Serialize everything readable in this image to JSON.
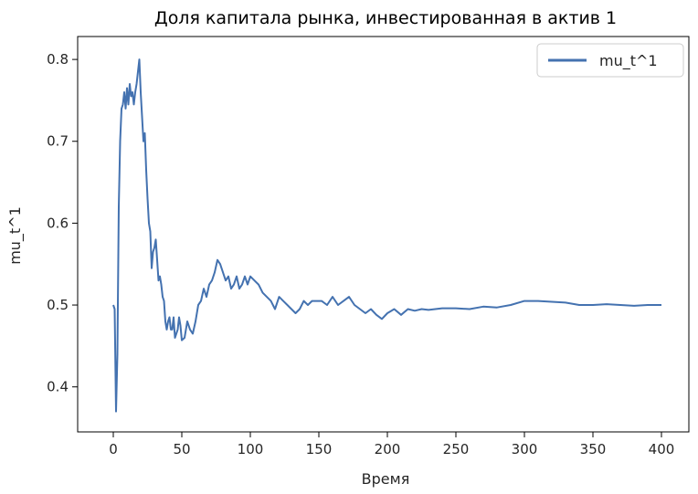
{
  "chart_data": {
    "type": "line",
    "title": "Доля капитала рынка, инвестированная в актив 1",
    "xlabel": "Время",
    "ylabel": "mu_t^1",
    "xlim": [
      -26,
      420
    ],
    "ylim": [
      0.345,
      0.828
    ],
    "x_ticks": [
      0,
      50,
      100,
      150,
      200,
      250,
      300,
      350,
      400
    ],
    "y_ticks": [
      0.4,
      0.5,
      0.6,
      0.7,
      0.8
    ],
    "y_tick_labels": [
      "0.4",
      "0.5",
      "0.6",
      "0.7",
      "0.8"
    ],
    "grid": false,
    "legend_position": "top-right",
    "series": [
      {
        "name": "mu_t^1",
        "color": "#4472b0",
        "x": [
          0,
          1,
          2,
          3,
          4,
          5,
          6,
          7,
          8,
          9,
          10,
          11,
          12,
          13,
          14,
          15,
          16,
          17,
          18,
          19,
          20,
          21,
          22,
          23,
          24,
          25,
          26,
          27,
          28,
          29,
          30,
          31,
          32,
          33,
          34,
          35,
          36,
          37,
          38,
          39,
          40,
          41,
          42,
          43,
          44,
          45,
          46,
          47,
          48,
          49,
          50,
          52,
          54,
          56,
          58,
          60,
          62,
          64,
          66,
          68,
          70,
          72,
          74,
          76,
          78,
          80,
          82,
          84,
          86,
          88,
          90,
          92,
          94,
          96,
          98,
          100,
          103,
          106,
          109,
          112,
          115,
          118,
          121,
          124,
          127,
          130,
          133,
          136,
          139,
          142,
          145,
          148,
          152,
          156,
          160,
          164,
          168,
          172,
          176,
          180,
          184,
          188,
          192,
          196,
          200,
          205,
          210,
          215,
          220,
          225,
          230,
          235,
          240,
          250,
          260,
          270,
          280,
          290,
          300,
          310,
          320,
          330,
          340,
          350,
          360,
          370,
          380,
          390,
          400
        ],
        "y": [
          0.5,
          0.495,
          0.37,
          0.44,
          0.62,
          0.7,
          0.74,
          0.745,
          0.76,
          0.74,
          0.765,
          0.745,
          0.77,
          0.755,
          0.76,
          0.745,
          0.76,
          0.77,
          0.785,
          0.8,
          0.76,
          0.73,
          0.7,
          0.71,
          0.665,
          0.63,
          0.6,
          0.59,
          0.545,
          0.565,
          0.57,
          0.58,
          0.555,
          0.53,
          0.535,
          0.525,
          0.51,
          0.505,
          0.48,
          0.47,
          0.48,
          0.485,
          0.47,
          0.47,
          0.485,
          0.46,
          0.465,
          0.47,
          0.485,
          0.475,
          0.457,
          0.46,
          0.48,
          0.47,
          0.465,
          0.48,
          0.5,
          0.505,
          0.52,
          0.51,
          0.525,
          0.53,
          0.54,
          0.555,
          0.55,
          0.54,
          0.53,
          0.535,
          0.52,
          0.525,
          0.535,
          0.52,
          0.525,
          0.535,
          0.525,
          0.535,
          0.53,
          0.525,
          0.515,
          0.51,
          0.505,
          0.495,
          0.51,
          0.505,
          0.5,
          0.495,
          0.49,
          0.495,
          0.505,
          0.5,
          0.505,
          0.505,
          0.505,
          0.5,
          0.51,
          0.5,
          0.505,
          0.51,
          0.5,
          0.495,
          0.49,
          0.495,
          0.488,
          0.483,
          0.49,
          0.495,
          0.488,
          0.495,
          0.493,
          0.495,
          0.494,
          0.495,
          0.496,
          0.496,
          0.495,
          0.498,
          0.497,
          0.5,
          0.505,
          0.505,
          0.504,
          0.503,
          0.5,
          0.5,
          0.501,
          0.5,
          0.499,
          0.5,
          0.5
        ]
      }
    ]
  }
}
